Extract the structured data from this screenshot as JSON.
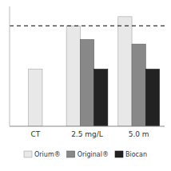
{
  "chart_data": {
    "type": "bar",
    "categories": [
      "CT",
      "2.5 mg/L",
      "5.0 m"
    ],
    "series": [
      {
        "name": "Orium®",
        "color": "#e8e8e8",
        "values": [
          0.5,
          0.88,
          0.96
        ]
      },
      {
        "name": "Original®",
        "color": "#888888",
        "values": [
          null,
          0.76,
          0.72
        ]
      },
      {
        "name": "Biocan",
        "color": "#222222",
        "values": [
          null,
          0.5,
          0.5
        ]
      }
    ],
    "reference_line": 0.88,
    "ylim": [
      0,
      1.05
    ],
    "tick_labels": "x",
    "grid": false,
    "legend": "bottom"
  }
}
